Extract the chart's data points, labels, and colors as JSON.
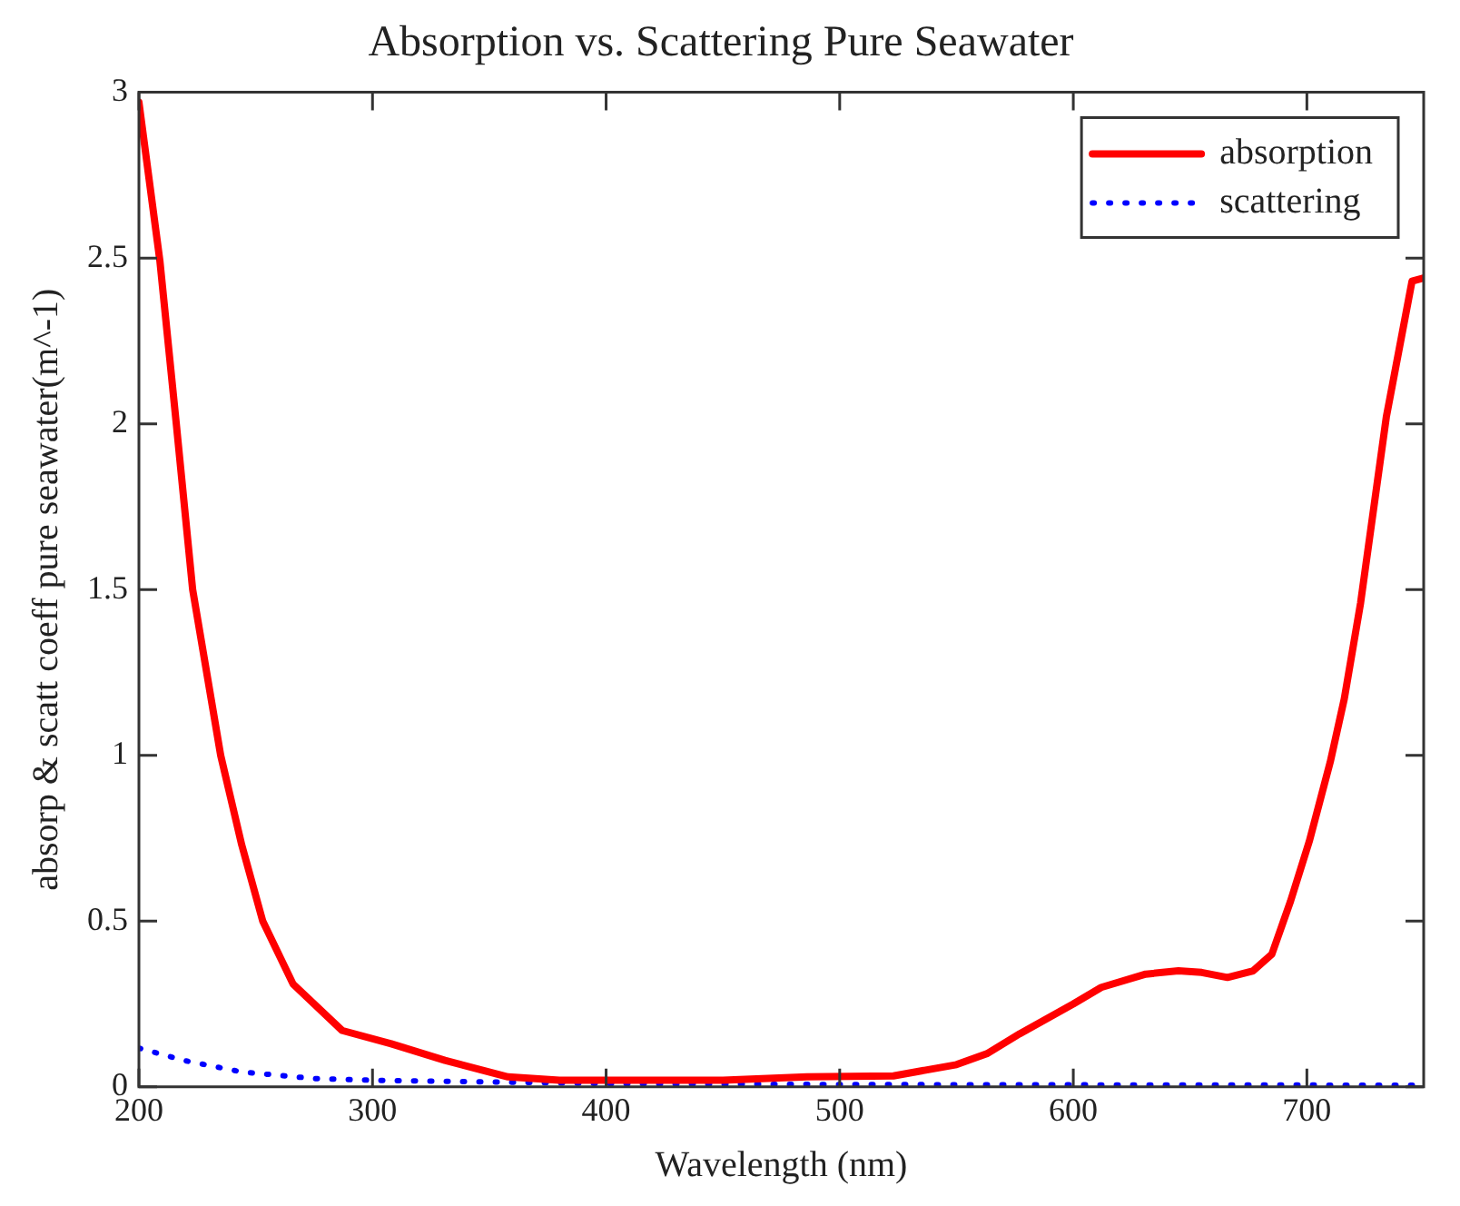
{
  "chart_data": {
    "type": "line",
    "title": "Absorption vs. Scattering Pure Seawater",
    "xlabel": "Wavelength (nm)",
    "ylabel": "absorp & scatt coeff pure seawater(m^-1)",
    "xlim": [
      200,
      750
    ],
    "xticks": [
      200,
      300,
      400,
      500,
      600,
      700
    ],
    "ylim": [
      0,
      3
    ],
    "yticks": [
      0,
      0.5,
      1,
      1.5,
      2,
      2.5,
      3
    ],
    "grid": false,
    "legend": "top right",
    "marker": "none",
    "series": [
      {
        "name": "absorption",
        "color": "#ff0000",
        "line_style": "solid",
        "x": [
          200,
          209,
          216,
          223,
          235,
          244,
          253,
          266,
          287,
          308,
          331,
          358,
          380,
          400,
          450,
          486,
          523,
          550,
          563,
          577,
          600,
          612,
          631,
          645,
          655,
          666,
          677,
          685,
          693,
          701,
          710,
          716,
          723,
          734,
          745,
          750
        ],
        "values": [
          2.97,
          2.49,
          2.0,
          1.5,
          1.0,
          0.73,
          0.5,
          0.31,
          0.17,
          0.13,
          0.08,
          0.03,
          0.02,
          0.02,
          0.02,
          0.03,
          0.033,
          0.067,
          0.1,
          0.16,
          0.25,
          0.3,
          0.34,
          0.35,
          0.345,
          0.33,
          0.35,
          0.4,
          0.56,
          0.74,
          0.98,
          1.17,
          1.46,
          2.02,
          2.43,
          2.44
        ]
      },
      {
        "name": "scattering",
        "color": "#0000ff",
        "line_style": "dotted",
        "x": [
          200,
          219,
          244,
          275,
          300,
          350,
          400,
          500,
          600,
          750
        ],
        "values": [
          0.117,
          0.08,
          0.045,
          0.025,
          0.02,
          0.015,
          0.01,
          0.007,
          0.006,
          0.005
        ]
      }
    ]
  }
}
